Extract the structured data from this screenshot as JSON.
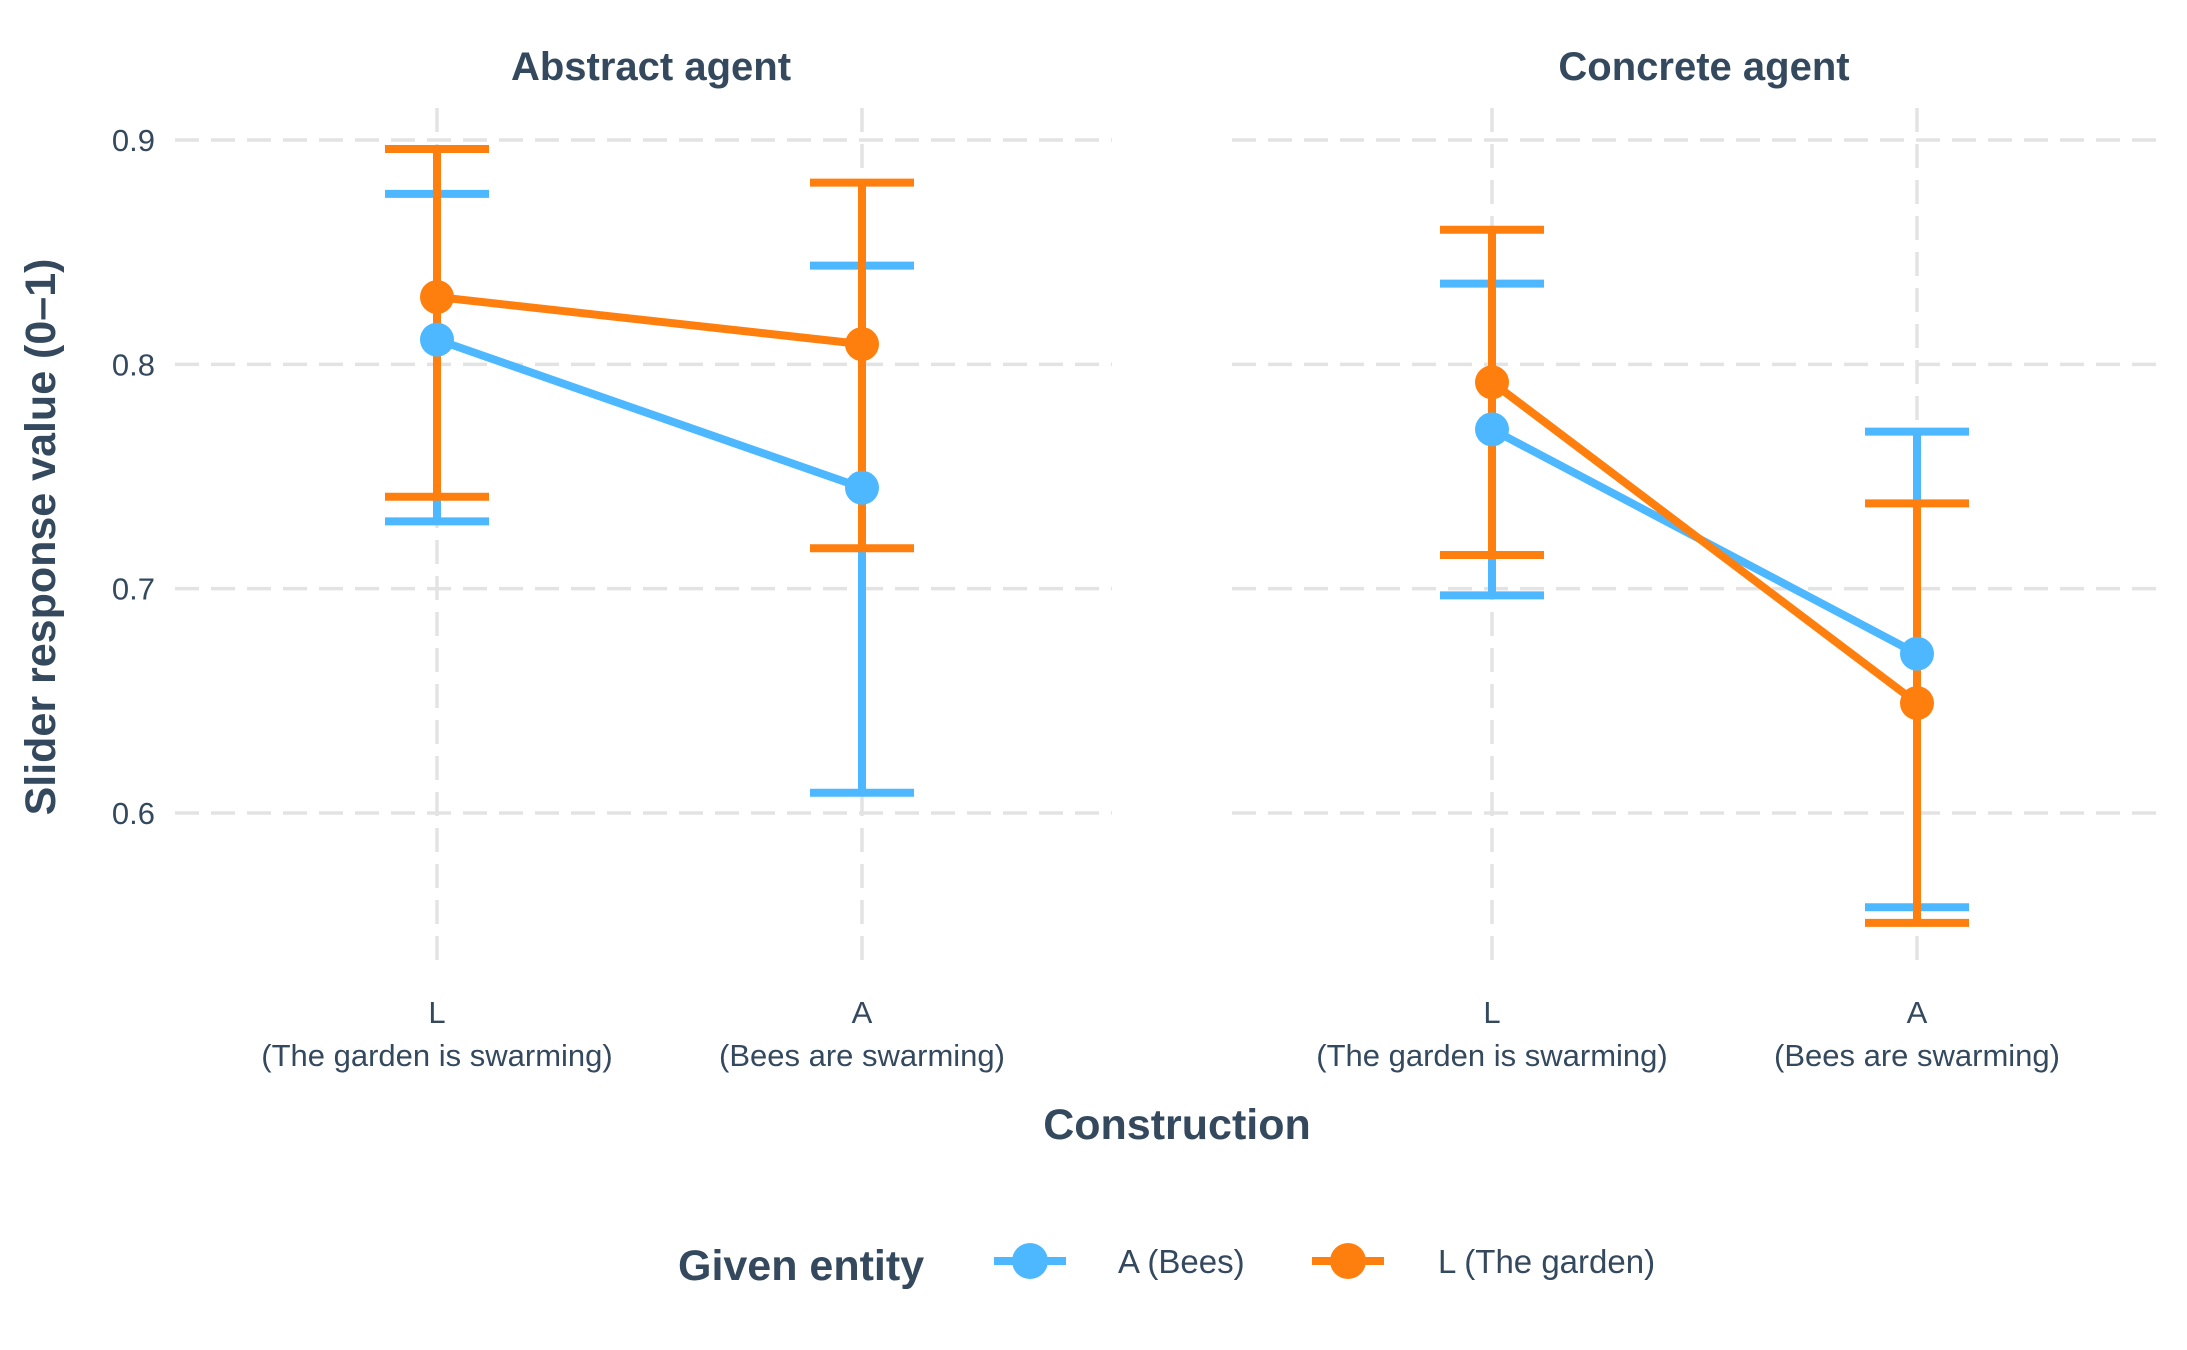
{
  "colors": {
    "A (Bees)": "#4db8ff",
    "L (The garden)": "#ff7f0e",
    "text": "#34495e",
    "grid": "#e3e3e3"
  },
  "chart_data": {
    "type": "line",
    "subtype": "point-range with error bars, faceted",
    "ylabel": "Slider response value (0–1)",
    "xlabel": "Construction",
    "yticks": [
      0.6,
      0.7,
      0.8,
      0.9
    ],
    "ylim": [
      0.52,
      0.915
    ],
    "grid": true,
    "legend": {
      "title": "Given entity",
      "position": "bottom",
      "entries": [
        "A (Bees)",
        "L (The garden)"
      ]
    },
    "categories": [
      {
        "code": "L",
        "desc": "(The garden is swarming)"
      },
      {
        "code": "A",
        "desc": "(Bees are swarming)"
      }
    ],
    "panels": [
      {
        "title": "Abstract agent",
        "series": [
          {
            "name": "A (Bees)",
            "values": [
              0.811,
              0.745
            ],
            "lower": [
              0.73,
              0.609
            ],
            "upper": [
              0.876,
              0.844
            ]
          },
          {
            "name": "L (The garden)",
            "values": [
              0.83,
              0.809
            ],
            "lower": [
              0.741,
              0.718
            ],
            "upper": [
              0.896,
              0.881
            ]
          }
        ]
      },
      {
        "title": "Concrete agent",
        "series": [
          {
            "name": "A (Bees)",
            "values": [
              0.771,
              0.671
            ],
            "lower": [
              0.697,
              0.558
            ],
            "upper": [
              0.836,
              0.77
            ]
          },
          {
            "name": "L (The garden)",
            "values": [
              0.792,
              0.649
            ],
            "lower": [
              0.715,
              0.551
            ],
            "upper": [
              0.86,
              0.738
            ]
          }
        ]
      }
    ]
  }
}
